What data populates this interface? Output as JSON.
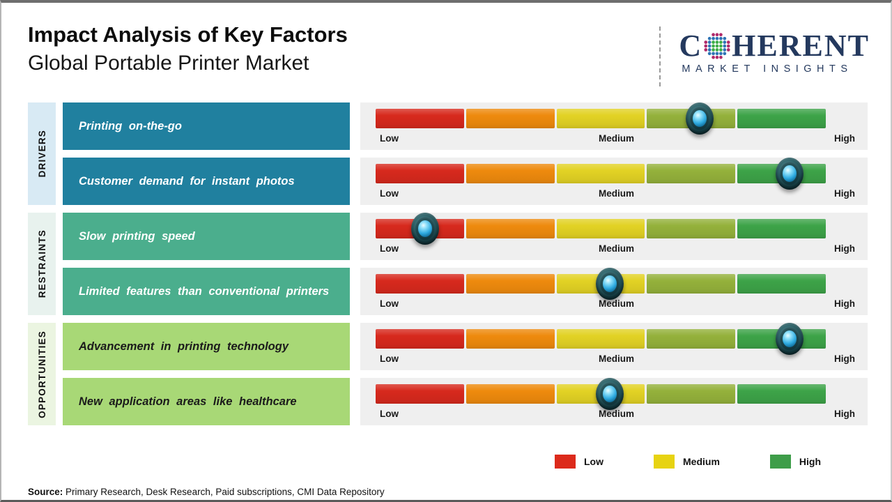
{
  "header": {
    "title": "Impact Analysis of Key Factors",
    "subtitle": "Global Portable Printer Market"
  },
  "logo": {
    "brand_c": "C",
    "brand_rest": "HERENT",
    "brand_bottom": "MARKET INSIGHTS",
    "brand_color": "#24395e",
    "globe_dot_colors": {
      "inner": "#3fae49",
      "mid": "#2e74b5",
      "outer": "#b02a6a"
    }
  },
  "chart_data": {
    "type": "heatmap",
    "description": "Impact rating of six market factors on a Low-Medium-High color scale, marker position = impact strength (percent of scale)",
    "scale_labels": {
      "low": "Low",
      "medium": "Medium",
      "high": "High"
    },
    "segment_colors": [
      "#d7291d",
      "#ee8a0d",
      "#e2d224",
      "#94b13b",
      "#3da348"
    ],
    "panel_color": "#efefef",
    "marker_colors": {
      "ring": "#143b41",
      "core": "#2fabe1"
    },
    "groups": [
      {
        "name": "DRIVERS",
        "color": "#20809f",
        "strip_color": "#d8eaf4",
        "text_color": "#ffffff",
        "factors": [
          {
            "label": "Printing on-the-go",
            "impact_pct": 72
          },
          {
            "label": "Customer demand for instant photos",
            "impact_pct": 92
          }
        ]
      },
      {
        "name": "RESTRAINTS",
        "color": "#4bae8d",
        "strip_color": "#e8f2ee",
        "text_color": "#ffffff",
        "factors": [
          {
            "label": "Slow printing speed",
            "impact_pct": 11
          },
          {
            "label": "Limited features than conventional printers",
            "impact_pct": 52
          }
        ]
      },
      {
        "name": "OPPORTUNITIES",
        "color": "#a8d876",
        "strip_color": "#ebf5e1",
        "text_color": "#1b1b1b",
        "factors": [
          {
            "label": "Advancement in printing technology",
            "impact_pct": 92
          },
          {
            "label": "New application areas like healthcare",
            "impact_pct": 52
          }
        ]
      }
    ],
    "legend": [
      {
        "label": "Low",
        "color": "#dc2a1b"
      },
      {
        "label": "Medium",
        "color": "#e7d312"
      },
      {
        "label": "High",
        "color": "#3e9d49"
      }
    ]
  },
  "footer": {
    "source_label": "Source:",
    "source_text": " Primary Research, Desk Research, Paid subscriptions, CMI Data Repository"
  }
}
